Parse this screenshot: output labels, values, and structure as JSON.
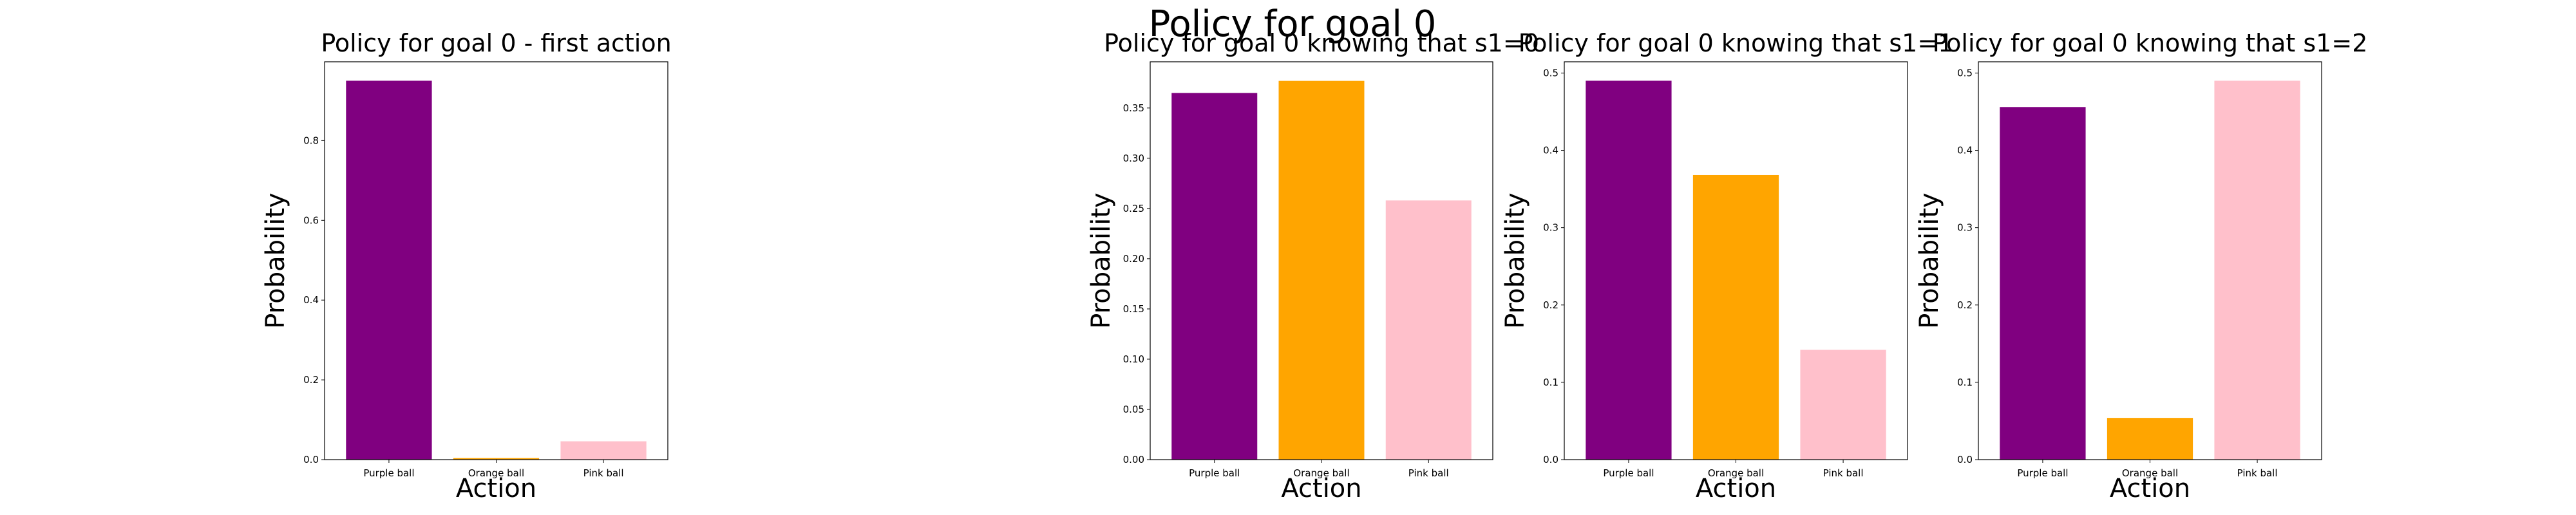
{
  "suptitle": "Policy for goal 0",
  "colors": {
    "purple": "#800080",
    "orange": "#FFA500",
    "pink": "#FFC0CB"
  },
  "chart_data": [
    {
      "type": "bar",
      "title": "Policy for goal 0 - first action",
      "xlabel": "Action",
      "ylabel": "Probability",
      "categories": [
        "Purple ball",
        "Orange ball",
        "Pink ball"
      ],
      "values": [
        0.95,
        0.004,
        0.046
      ],
      "ylim": [
        0,
        0.9975
      ],
      "yticks": [
        "0.0",
        "0.2",
        "0.4",
        "0.6",
        "0.8"
      ],
      "ytick_values": [
        0,
        0.2,
        0.4,
        0.6,
        0.8
      ]
    },
    {
      "type": "bar",
      "title": "Policy for goal 0 knowing that s1=0",
      "xlabel": "Action",
      "ylabel": "Probability",
      "categories": [
        "Purple ball",
        "Orange ball",
        "Pink ball"
      ],
      "values": [
        0.365,
        0.377,
        0.258
      ],
      "ylim": [
        0,
        0.396
      ],
      "yticks": [
        "0.00",
        "0.05",
        "0.10",
        "0.15",
        "0.20",
        "0.25",
        "0.30",
        "0.35"
      ],
      "ytick_values": [
        0,
        0.05,
        0.1,
        0.15,
        0.2,
        0.25,
        0.3,
        0.35
      ]
    },
    {
      "type": "bar",
      "title": "Policy for goal 0 knowing that s1=1",
      "xlabel": "Action",
      "ylabel": "Probability",
      "categories": [
        "Purple ball",
        "Orange ball",
        "Pink ball"
      ],
      "values": [
        0.49,
        0.368,
        0.142
      ],
      "ylim": [
        0,
        0.5145
      ],
      "yticks": [
        "0.0",
        "0.1",
        "0.2",
        "0.3",
        "0.4",
        "0.5"
      ],
      "ytick_values": [
        0,
        0.1,
        0.2,
        0.3,
        0.4,
        0.5
      ]
    },
    {
      "type": "bar",
      "title": "Policy for goal 0 knowing that s1=2",
      "xlabel": "Action",
      "ylabel": "Probability",
      "categories": [
        "Purple ball",
        "Orange ball",
        "Pink ball"
      ],
      "values": [
        0.456,
        0.054,
        0.49
      ],
      "ylim": [
        0,
        0.5145
      ],
      "yticks": [
        "0.0",
        "0.1",
        "0.2",
        "0.3",
        "0.4",
        "0.5"
      ],
      "ytick_values": [
        0,
        0.1,
        0.2,
        0.3,
        0.4,
        0.5
      ]
    }
  ]
}
